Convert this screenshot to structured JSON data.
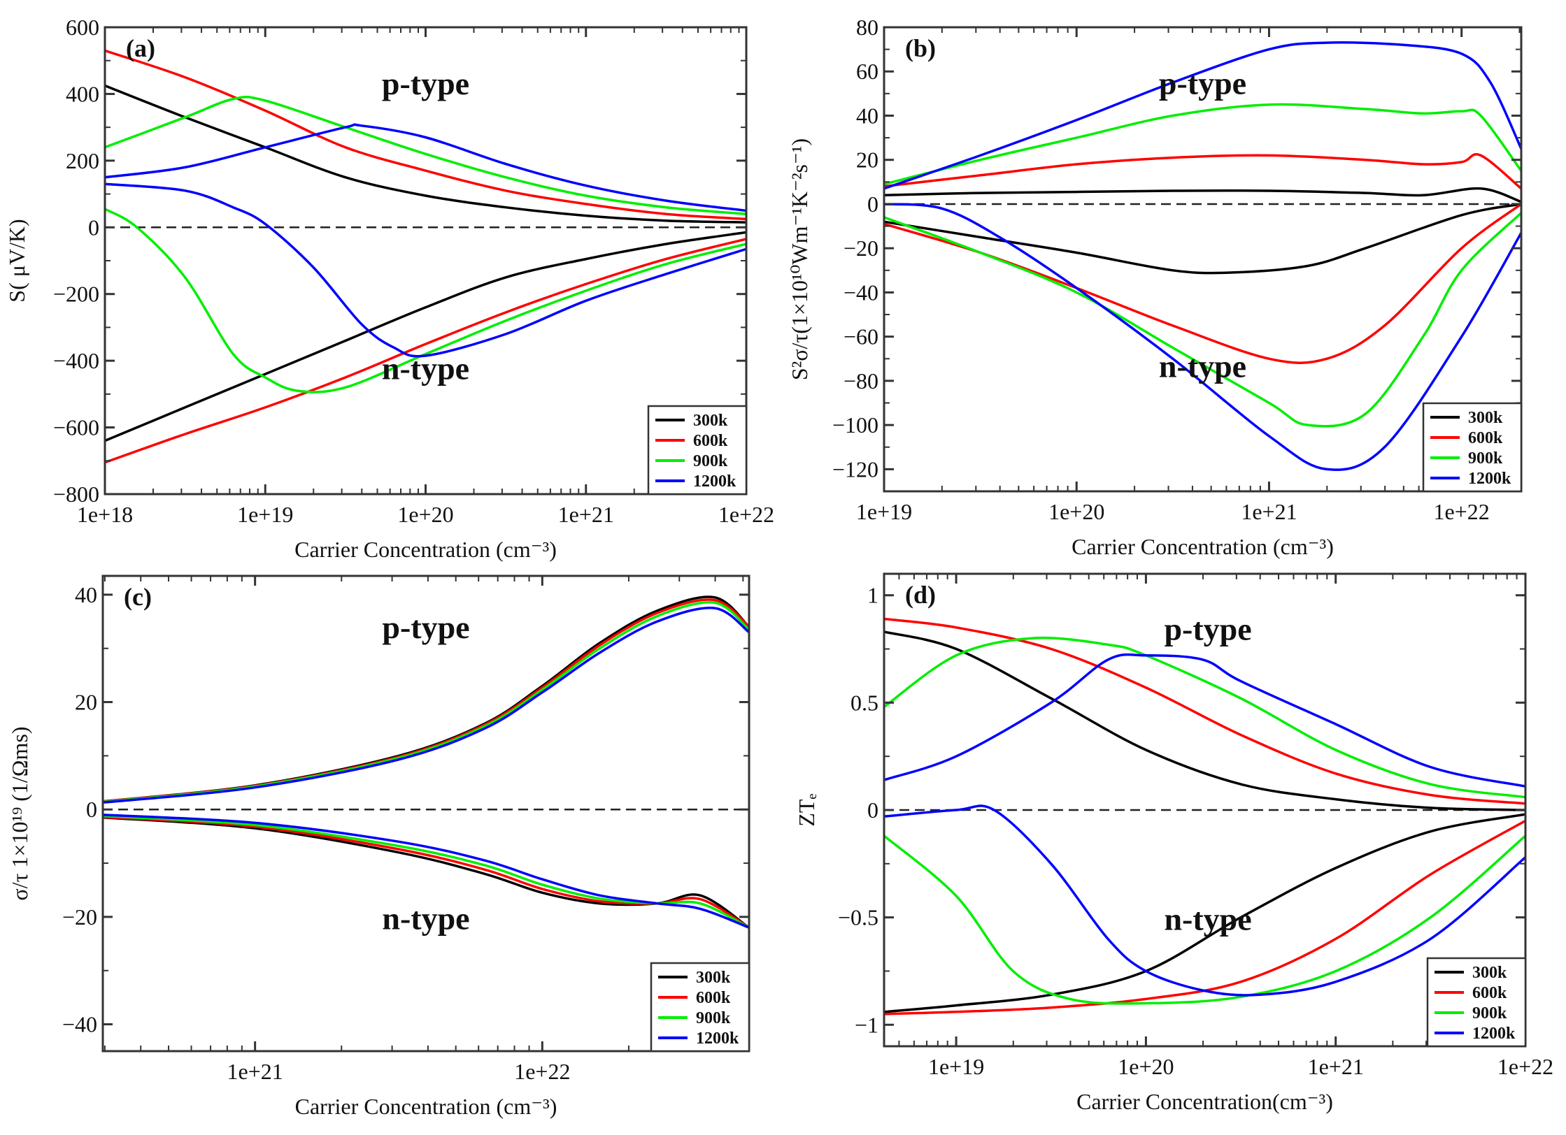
{
  "chart_data": [
    {
      "type": "line",
      "panel_label": "(a)",
      "xlabel": "Carrier Concentration (cm⁻³)",
      "ylabel": "S( μV/K)",
      "x_scale": "log10",
      "xlim_log10": [
        18,
        22
      ],
      "ylim": [
        -800,
        600
      ],
      "xticks_log10": [
        18,
        19,
        20,
        21,
        22
      ],
      "xtick_labels": [
        "1e+18",
        "1e+19",
        "1e+20",
        "1e+21",
        "1e+22"
      ],
      "yticks": [
        -800,
        -600,
        -400,
        -200,
        0,
        200,
        400,
        600
      ],
      "ytick_labels": [
        "−800",
        "−600",
        "−400",
        "−200",
        "0",
        "200",
        "400",
        "600"
      ],
      "annotations": [
        "p-type",
        "n-type"
      ],
      "legend_position": "bottom-right",
      "series": [
        {
          "name": "300k",
          "color": "#000000",
          "branch": "p",
          "x": [
            18,
            18.5,
            19,
            19.5,
            20,
            20.5,
            21,
            21.5,
            22
          ],
          "y": [
            425,
            330,
            240,
            150,
            95,
            60,
            35,
            20,
            15
          ]
        },
        {
          "name": "600k",
          "color": "#ff0000",
          "branch": "p",
          "x": [
            18,
            18.5,
            19,
            19.5,
            20,
            20.5,
            21,
            21.5,
            22
          ],
          "y": [
            530,
            450,
            350,
            240,
            170,
            110,
            70,
            40,
            25
          ]
        },
        {
          "name": "900k",
          "color": "#00ee00",
          "branch": "p",
          "x": [
            18,
            18.5,
            18.8,
            19,
            19.5,
            20,
            20.5,
            21,
            21.5,
            22
          ],
          "y": [
            240,
            330,
            385,
            380,
            300,
            220,
            150,
            95,
            60,
            40
          ]
        },
        {
          "name": "1200k",
          "color": "#0000ff",
          "branch": "p",
          "x": [
            18,
            18.5,
            19,
            19.5,
            19.6,
            20,
            20.5,
            21,
            21.5,
            22
          ],
          "y": [
            150,
            180,
            240,
            300,
            305,
            270,
            190,
            125,
            80,
            50
          ]
        },
        {
          "name": "300k",
          "color": "#000000",
          "branch": "n",
          "x": [
            18,
            18.5,
            19,
            19.5,
            20,
            20.5,
            21,
            21.5,
            22
          ],
          "y": [
            -640,
            -540,
            -440,
            -340,
            -240,
            -150,
            -95,
            -50,
            -15
          ]
        },
        {
          "name": "600k",
          "color": "#ff0000",
          "branch": "n",
          "x": [
            18,
            18.5,
            19,
            19.5,
            20,
            20.5,
            21,
            21.5,
            22
          ],
          "y": [
            -705,
            -620,
            -540,
            -450,
            -350,
            -255,
            -170,
            -95,
            -35
          ]
        },
        {
          "name": "900k",
          "color": "#00ee00",
          "branch": "n",
          "x": [
            18,
            18.2,
            18.5,
            18.8,
            19,
            19.2,
            19.5,
            20,
            20.5,
            21,
            21.5,
            22
          ],
          "y": [
            55,
            0,
            -150,
            -380,
            -450,
            -490,
            -480,
            -380,
            -280,
            -190,
            -110,
            -50
          ]
        },
        {
          "name": "1200k",
          "color": "#0000ff",
          "branch": "n",
          "x": [
            18,
            18.5,
            18.8,
            19,
            19.3,
            19.6,
            19.8,
            20,
            20.5,
            21,
            21.5,
            22
          ],
          "y": [
            130,
            110,
            60,
            10,
            -120,
            -290,
            -360,
            -385,
            -320,
            -220,
            -140,
            -65
          ]
        }
      ]
    },
    {
      "type": "line",
      "panel_label": "(b)",
      "xlabel": "Carrier Concentration (cm⁻³)",
      "ylabel": "S²σ/τ(1×10¹⁰Wm⁻¹K⁻²s⁻¹)",
      "x_scale": "log10",
      "xlim_log10": [
        19,
        22.31
      ],
      "ylim": [
        -130,
        80
      ],
      "xticks_log10": [
        19,
        20,
        21,
        22
      ],
      "xtick_labels": [
        "1e+19",
        "1e+20",
        "1e+21",
        "1e+22"
      ],
      "yticks": [
        -120,
        -100,
        -80,
        -60,
        -40,
        -20,
        0,
        20,
        40,
        60,
        80
      ],
      "ytick_labels": [
        "−120",
        "−100",
        "−80",
        "−60",
        "−40",
        "−20",
        "0",
        "20",
        "40",
        "60",
        "80"
      ],
      "annotations": [
        "p-type",
        "n-type"
      ],
      "legend_position": "bottom-right",
      "series": [
        {
          "name": "300k",
          "color": "#000000",
          "branch": "p",
          "x": [
            19,
            19.5,
            20,
            20.5,
            21,
            21.5,
            21.8,
            22.1,
            22.31
          ],
          "y": [
            4,
            5,
            5.5,
            6,
            6,
            5,
            4,
            7,
            1
          ]
        },
        {
          "name": "600k",
          "color": "#ff0000",
          "branch": "p",
          "x": [
            19,
            19.5,
            20,
            20.5,
            21,
            21.5,
            21.8,
            22,
            22.1,
            22.31
          ],
          "y": [
            8,
            13,
            18,
            21,
            22,
            20,
            18,
            19,
            22,
            7
          ]
        },
        {
          "name": "900k",
          "color": "#00ee00",
          "branch": "p",
          "x": [
            19,
            19.5,
            20,
            20.5,
            21,
            21.5,
            21.8,
            22,
            22.1,
            22.31
          ],
          "y": [
            9,
            20,
            30,
            40,
            45,
            43,
            41,
            42,
            40,
            15
          ]
        },
        {
          "name": "1200k",
          "color": "#0000ff",
          "branch": "p",
          "x": [
            19,
            19.5,
            20,
            20.5,
            21,
            21.3,
            21.7,
            22,
            22.15,
            22.31
          ],
          "y": [
            7,
            22,
            38,
            55,
            70,
            73,
            72,
            68,
            55,
            25
          ]
        },
        {
          "name": "300k",
          "color": "#000000",
          "branch": "n",
          "x": [
            19,
            19.5,
            20,
            20.5,
            20.8,
            21.2,
            21.5,
            22,
            22.31
          ],
          "y": [
            -8,
            -15,
            -22,
            -30,
            -31,
            -28,
            -20,
            -5,
            0
          ]
        },
        {
          "name": "600k",
          "color": "#ff0000",
          "branch": "n",
          "x": [
            19,
            19.5,
            20,
            20.5,
            21,
            21.3,
            21.6,
            22,
            22.31
          ],
          "y": [
            -9,
            -22,
            -38,
            -55,
            -70,
            -70,
            -55,
            -20,
            0
          ]
        },
        {
          "name": "900k",
          "color": "#00ee00",
          "branch": "n",
          "x": [
            19,
            19.5,
            20,
            20.5,
            21,
            21.2,
            21.5,
            21.8,
            22,
            22.31
          ],
          "y": [
            -6,
            -22,
            -40,
            -65,
            -90,
            -100,
            -95,
            -60,
            -30,
            -4
          ]
        },
        {
          "name": "1200k",
          "color": "#0000ff",
          "branch": "n",
          "x": [
            19,
            19.3,
            19.6,
            20,
            20.5,
            21,
            21.3,
            21.6,
            22,
            22.31
          ],
          "y": [
            0,
            -2,
            -15,
            -38,
            -70,
            -105,
            -120,
            -110,
            -60,
            -13
          ]
        }
      ]
    },
    {
      "type": "line",
      "panel_label": "(c)",
      "xlabel": "Carrier Concentration (cm⁻³)",
      "ylabel": "σ/τ 1×10¹⁹ (1/Ωms)",
      "x_scale": "log10",
      "xlim_log10": [
        20.47,
        22.72
      ],
      "ylim": [
        -45,
        43.5
      ],
      "xticks_log10": [
        21,
        22
      ],
      "xtick_labels": [
        "1e+21",
        "1e+22"
      ],
      "yticks": [
        -40,
        -20,
        0,
        20,
        40
      ],
      "ytick_labels": [
        "−40",
        "−20",
        "0",
        "20",
        "40"
      ],
      "annotations": [
        "p-type",
        "n-type"
      ],
      "legend_position": "bottom-right",
      "series": [
        {
          "name": "300k",
          "color": "#000000",
          "branch": "p",
          "x": [
            20.47,
            21,
            21.5,
            21.8,
            22,
            22.2,
            22.4,
            22.6,
            22.72
          ],
          "y": [
            1.5,
            4.5,
            10,
            16,
            23,
            31,
            37,
            39.5,
            34
          ]
        },
        {
          "name": "600k",
          "color": "#ff0000",
          "branch": "p",
          "x": [
            20.47,
            21,
            21.5,
            21.8,
            22,
            22.2,
            22.4,
            22.6,
            22.72
          ],
          "y": [
            1.5,
            4.4,
            9.8,
            15.8,
            22.7,
            30.6,
            36.6,
            39,
            34
          ]
        },
        {
          "name": "900k",
          "color": "#00ee00",
          "branch": "p",
          "x": [
            20.47,
            21,
            21.5,
            21.8,
            22,
            22.2,
            22.4,
            22.6,
            22.72
          ],
          "y": [
            1.4,
            4.3,
            9.6,
            15.5,
            22.3,
            30,
            36,
            38.5,
            33.5
          ]
        },
        {
          "name": "1200k",
          "color": "#0000ff",
          "branch": "p",
          "x": [
            20.47,
            21,
            21.5,
            21.8,
            22,
            22.2,
            22.4,
            22.6,
            22.72
          ],
          "y": [
            1.3,
            4.1,
            9.3,
            15.1,
            21.8,
            29.2,
            35,
            37.5,
            33
          ]
        },
        {
          "name": "300k",
          "color": "#000000",
          "branch": "n",
          "x": [
            20.47,
            21,
            21.5,
            21.8,
            22,
            22.2,
            22.4,
            22.55,
            22.72
          ],
          "y": [
            -1.5,
            -3.5,
            -8,
            -12,
            -15.5,
            -17.5,
            -17.5,
            -16,
            -22
          ]
        },
        {
          "name": "600k",
          "color": "#ff0000",
          "branch": "n",
          "x": [
            20.47,
            21,
            21.5,
            21.8,
            22,
            22.2,
            22.4,
            22.55,
            22.72
          ],
          "y": [
            -1.4,
            -3.2,
            -7.4,
            -11.2,
            -14.8,
            -17.1,
            -17.5,
            -16.7,
            -22
          ]
        },
        {
          "name": "900k",
          "color": "#00ee00",
          "branch": "n",
          "x": [
            20.47,
            21,
            21.5,
            21.8,
            22,
            22.2,
            22.4,
            22.55,
            22.72
          ],
          "y": [
            -1.2,
            -2.9,
            -6.8,
            -10.4,
            -14,
            -16.6,
            -17.5,
            -17.5,
            -22
          ]
        },
        {
          "name": "1200k",
          "color": "#0000ff",
          "branch": "n",
          "x": [
            20.47,
            21,
            21.5,
            21.8,
            22,
            22.2,
            22.4,
            22.55,
            22.72
          ],
          "y": [
            -1,
            -2.5,
            -6,
            -9.5,
            -13,
            -16,
            -17.5,
            -18.5,
            -22
          ]
        }
      ]
    },
    {
      "type": "line",
      "panel_label": "(d)",
      "xlabel": "Carrier Concentration(cm⁻³)",
      "ylabel": "ZTₑ",
      "x_scale": "log10",
      "xlim_log10": [
        18.62,
        22
      ],
      "ylim": [
        -1.1,
        1.1
      ],
      "xticks_log10": [
        19,
        20,
        21,
        22
      ],
      "xtick_labels": [
        "1e+19",
        "1e+20",
        "1e+21",
        "1e+22"
      ],
      "yticks": [
        -1,
        -0.5,
        0,
        0.5,
        1
      ],
      "ytick_labels": [
        "−1",
        "−0.5",
        "0",
        "0.5",
        "1"
      ],
      "annotations": [
        "p-type",
        "n-type"
      ],
      "legend_position": "bottom-right",
      "series": [
        {
          "name": "300k",
          "color": "#000000",
          "branch": "p",
          "x": [
            18.62,
            19,
            19.5,
            20,
            20.5,
            21,
            21.5,
            22
          ],
          "y": [
            0.83,
            0.75,
            0.52,
            0.28,
            0.12,
            0.05,
            0.01,
            0
          ]
        },
        {
          "name": "600k",
          "color": "#ff0000",
          "branch": "p",
          "x": [
            18.62,
            19,
            19.5,
            20,
            20.5,
            21,
            21.5,
            22
          ],
          "y": [
            0.89,
            0.85,
            0.75,
            0.57,
            0.35,
            0.17,
            0.07,
            0.03
          ]
        },
        {
          "name": "900k",
          "color": "#00ee00",
          "branch": "p",
          "x": [
            18.62,
            19,
            19.4,
            19.8,
            20,
            20.5,
            21,
            21.5,
            22
          ],
          "y": [
            0.48,
            0.72,
            0.8,
            0.77,
            0.72,
            0.52,
            0.28,
            0.12,
            0.06
          ]
        },
        {
          "name": "1200k",
          "color": "#0000ff",
          "branch": "p",
          "x": [
            18.62,
            19,
            19.5,
            19.8,
            20,
            20.3,
            20.5,
            21,
            21.5,
            22
          ],
          "y": [
            0.14,
            0.25,
            0.5,
            0.7,
            0.72,
            0.7,
            0.6,
            0.4,
            0.2,
            0.11
          ]
        },
        {
          "name": "300k",
          "color": "#000000",
          "branch": "n",
          "x": [
            18.62,
            19,
            19.5,
            20,
            20.5,
            21,
            21.5,
            22
          ],
          "y": [
            -0.94,
            -0.91,
            -0.86,
            -0.75,
            -0.5,
            -0.27,
            -0.1,
            -0.02
          ]
        },
        {
          "name": "600k",
          "color": "#ff0000",
          "branch": "n",
          "x": [
            18.62,
            19,
            19.5,
            20,
            20.5,
            21,
            21.5,
            22
          ],
          "y": [
            -0.95,
            -0.94,
            -0.92,
            -0.88,
            -0.8,
            -0.6,
            -0.3,
            -0.05
          ]
        },
        {
          "name": "900k",
          "color": "#00ee00",
          "branch": "n",
          "x": [
            18.62,
            19,
            19.3,
            19.6,
            20,
            20.5,
            21,
            21.5,
            22
          ],
          "y": [
            -0.12,
            -0.4,
            -0.75,
            -0.88,
            -0.9,
            -0.87,
            -0.75,
            -0.5,
            -0.12
          ]
        },
        {
          "name": "1200k",
          "color": "#0000ff",
          "branch": "n",
          "x": [
            18.62,
            19,
            19.2,
            19.5,
            19.8,
            20,
            20.3,
            20.6,
            21,
            21.5,
            22
          ],
          "y": [
            -0.03,
            0,
            0,
            -0.25,
            -0.6,
            -0.75,
            -0.84,
            -0.86,
            -0.8,
            -0.6,
            -0.22
          ]
        }
      ]
    }
  ],
  "legend": [
    {
      "label": "300k",
      "color": "#000000"
    },
    {
      "label": "600k",
      "color": "#ff0000"
    },
    {
      "label": "900k",
      "color": "#00ee00"
    },
    {
      "label": "1200k",
      "color": "#0000ff"
    }
  ]
}
